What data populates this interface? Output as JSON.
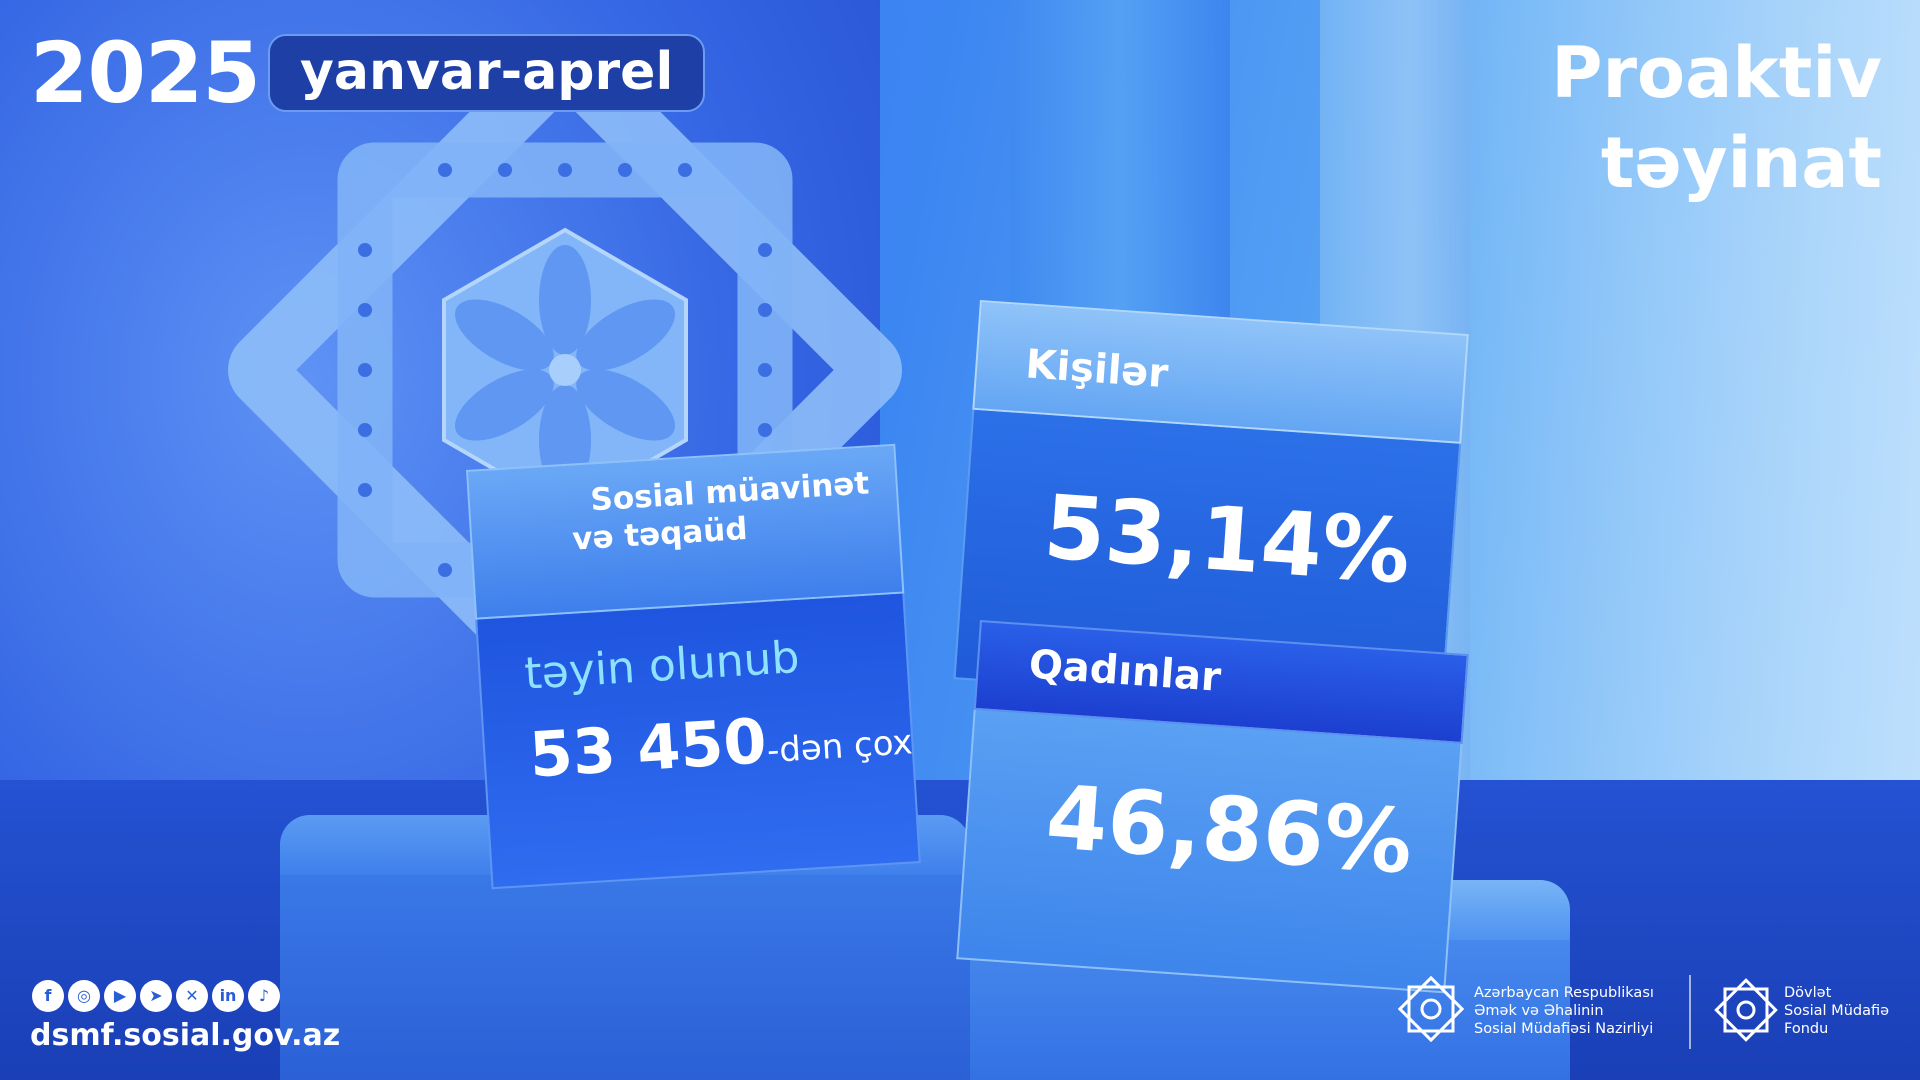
{
  "header": {
    "year": "2025",
    "period": "yanvar-aprel",
    "title_line1": "Proaktiv",
    "title_line2": "təyinat"
  },
  "benefit_panel": {
    "title_line1": "Sosial müavinət",
    "title_line2": "və təqaüd",
    "assigned_label": "təyin olunub",
    "count": "53 450",
    "count_suffix": "-dən çox"
  },
  "gender_split": {
    "men_label": "Kişilər",
    "men_percent": "53,14%",
    "women_label": "Qadınlar",
    "women_percent": "46,86%"
  },
  "footer": {
    "social_icons": [
      "facebook-icon",
      "instagram-icon",
      "youtube-icon",
      "telegram-icon",
      "x-icon",
      "linkedin-icon",
      "tiktok-icon"
    ],
    "website": "dsmf.sosial.gov.az",
    "org1_line1": "Azərbaycan Respublikası",
    "org1_line2": "Əmək və Əhalinin",
    "org1_line3": "Sosial Müdafiəsi Nazirliyi",
    "org2_line1": "Dövlət",
    "org2_line2": "Sosial Müdafiə",
    "org2_line3": "Fondu"
  },
  "colors": {
    "accent_dark": "#1d3fa6",
    "highlight_cyan": "#8fe2ff",
    "background_blue": "#3566e4"
  }
}
